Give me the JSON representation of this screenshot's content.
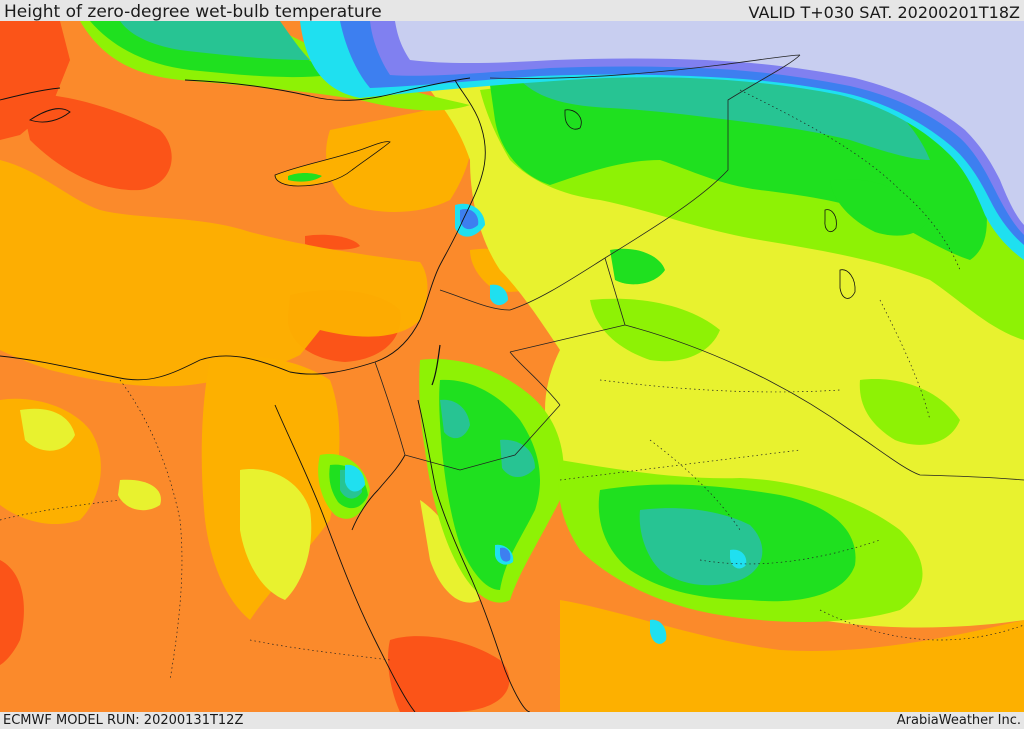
{
  "header": {
    "title": "Height of zero-degree wet-bulb temperature",
    "valid": "VALID T+030 SAT. 20200201T18Z"
  },
  "footer": {
    "model_run": "ECMWF MODEL RUN: 20200131T12Z",
    "credit": "ArabiaWeather Inc."
  },
  "palette": {
    "red": "#fb5418",
    "orange": "#fb8a2b",
    "amber": "#fdb000",
    "yellow": "#e8f22f",
    "lime": "#8ef205",
    "green": "#1fe01f",
    "teal": "#27c493",
    "cyan": "#1fe0f0",
    "blue": "#3d7ff0",
    "violet": "#8080f0",
    "lavender": "#c8cef0"
  }
}
